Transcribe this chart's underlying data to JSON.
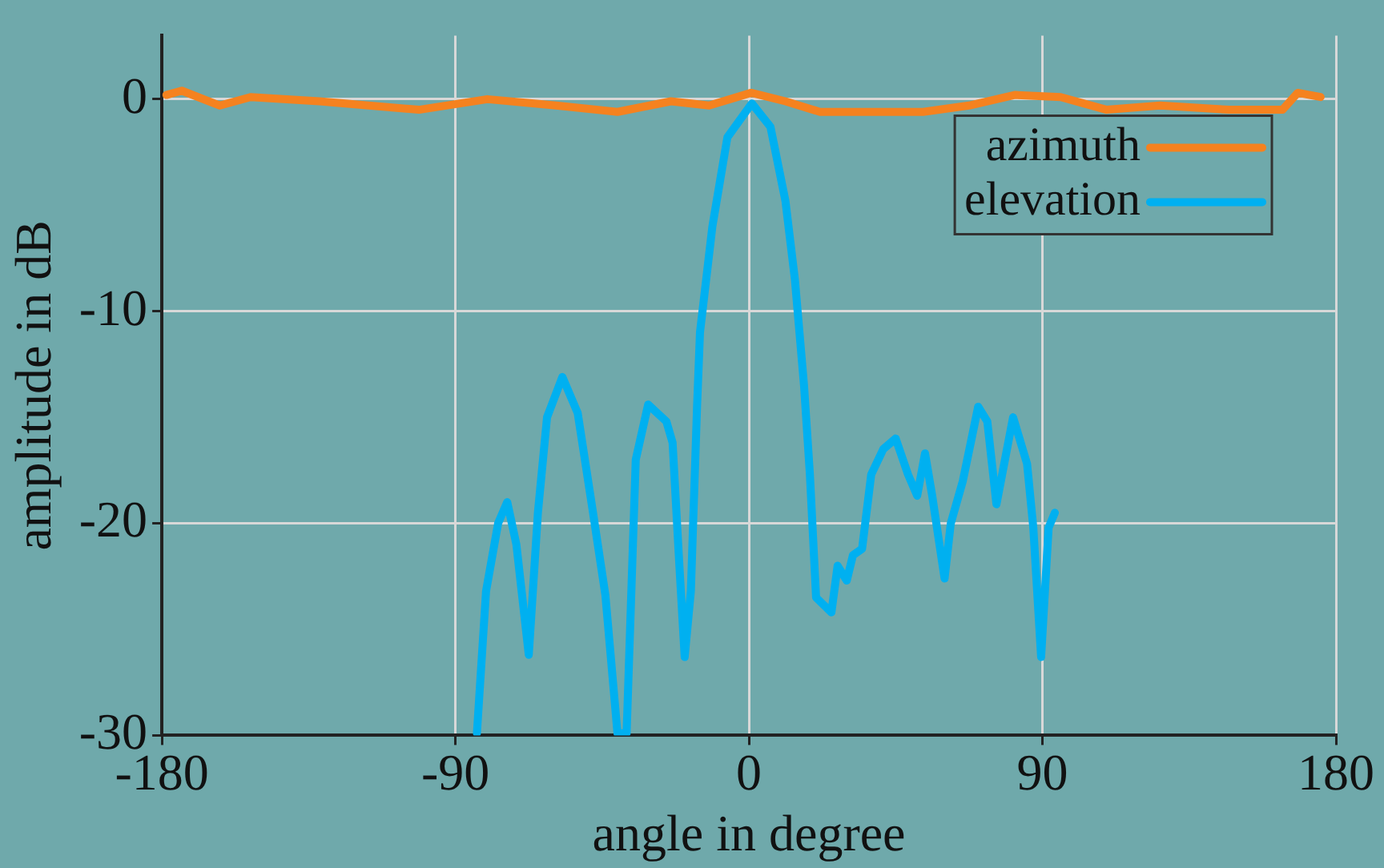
{
  "chart_data": {
    "type": "line",
    "xlabel": "angle in degree",
    "ylabel": "amplitude in dB",
    "xlim": [
      -180,
      180
    ],
    "xticks": [
      -180,
      -90,
      0,
      90,
      180
    ],
    "ylim": [
      -30,
      3
    ],
    "yticks": [
      -30,
      -20,
      -10,
      0
    ],
    "grid": true,
    "legend": "top right",
    "marker": "none",
    "line_style": "solid",
    "series": [
      {
        "name": "azimuth",
        "color": "#f5821f",
        "x": [
          -178.6,
          -173.9,
          -162.2,
          -152.8,
          -131.7,
          -101.2,
          -80.2,
          -59.1,
          -40.3,
          -23.9,
          -12.2,
          0.7,
          11.2,
          21.8,
          34.7,
          53.4,
          67.5,
          81.5,
          95.6,
          109.7,
          126.1,
          147.2,
          163.6,
          168.3,
          175.3
        ],
        "values": [
          0.2,
          0.4,
          -0.3,
          0.1,
          -0.1,
          -0.5,
          0.0,
          -0.3,
          -0.6,
          -0.1,
          -0.3,
          0.3,
          -0.1,
          -0.6,
          -0.6,
          -0.6,
          -0.3,
          0.2,
          0.1,
          -0.5,
          -0.3,
          -0.5,
          -0.5,
          0.3,
          0.1
        ]
      },
      {
        "name": "elevation",
        "color": "#00b0f0",
        "x": [
          -83.4,
          -80.6,
          -76.9,
          -74.1,
          -71.3,
          -67.5,
          -64.7,
          -61.9,
          -57.2,
          -52.5,
          -47.8,
          -44.0,
          -40.3,
          -37.5,
          -34.7,
          -30.9,
          -25.3,
          -23.4,
          -21.5,
          -19.7,
          -17.8,
          -15.9,
          -15.0,
          -11.2,
          -6.6,
          0.9,
          6.6,
          11.2,
          14.1,
          16.9,
          18.7,
          20.6,
          25.3,
          27.2,
          30.0,
          31.9,
          34.7,
          37.5,
          41.2,
          45.0,
          48.8,
          51.6,
          54.0,
          56.2,
          60.0,
          61.9,
          65.6,
          70.3,
          73.1,
          75.9,
          81.0,
          85.3,
          87.2,
          89.6,
          91.9,
          93.8
        ],
        "values": [
          -29.9,
          -23.2,
          -20.0,
          -19.0,
          -21.0,
          -26.2,
          -19.5,
          -15.0,
          -13.1,
          -14.8,
          -19.5,
          -23.4,
          -29.9,
          -29.9,
          -17.0,
          -14.4,
          -15.2,
          -16.2,
          -21.5,
          -26.3,
          -23.2,
          -14.5,
          -11.0,
          -6.0,
          -1.8,
          -0.2,
          -1.3,
          -4.8,
          -8.5,
          -13.5,
          -17.7,
          -23.5,
          -24.2,
          -22.0,
          -22.7,
          -21.5,
          -21.2,
          -17.7,
          -16.5,
          -16.0,
          -17.7,
          -18.7,
          -16.7,
          -18.7,
          -22.6,
          -20.0,
          -18.0,
          -14.5,
          -15.2,
          -19.1,
          -15.0,
          -17.2,
          -20.2,
          -26.3,
          -20.2,
          -19.5
        ]
      }
    ]
  }
}
